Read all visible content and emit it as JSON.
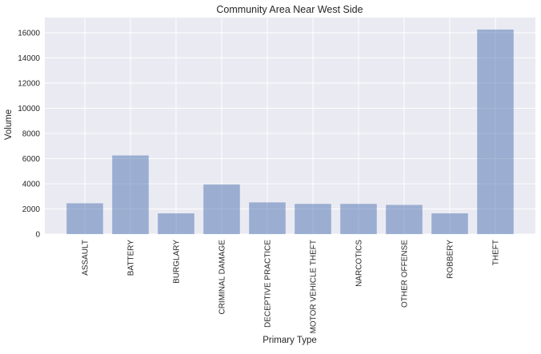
{
  "colors": {
    "plot_background": "#EAEAF2",
    "grid": "#FFFFFF",
    "bar_fill": "#4C72B0",
    "text": "#262626"
  },
  "chart_data": {
    "type": "bar",
    "title": "Community Area Near West Side",
    "xlabel": "Primary Type",
    "ylabel": "Volume",
    "categories": [
      "ASSAULT",
      "BATTERY",
      "BURGLARY",
      "CRIMINAL DAMAGE",
      "DECEPTIVE PRACTICE",
      "MOTOR VEHICLE THEFT",
      "NARCOTICS",
      "OTHER OFFENSE",
      "ROBBERY",
      "THEFT"
    ],
    "values": [
      2450,
      6250,
      1650,
      3950,
      2520,
      2400,
      2400,
      2320,
      1650,
      16250
    ],
    "ylim": [
      0,
      17200
    ],
    "yticks": [
      0,
      2000,
      4000,
      6000,
      8000,
      10000,
      12000,
      14000,
      16000
    ],
    "bar_alpha": 0.5,
    "grid": true,
    "legend": "none"
  }
}
